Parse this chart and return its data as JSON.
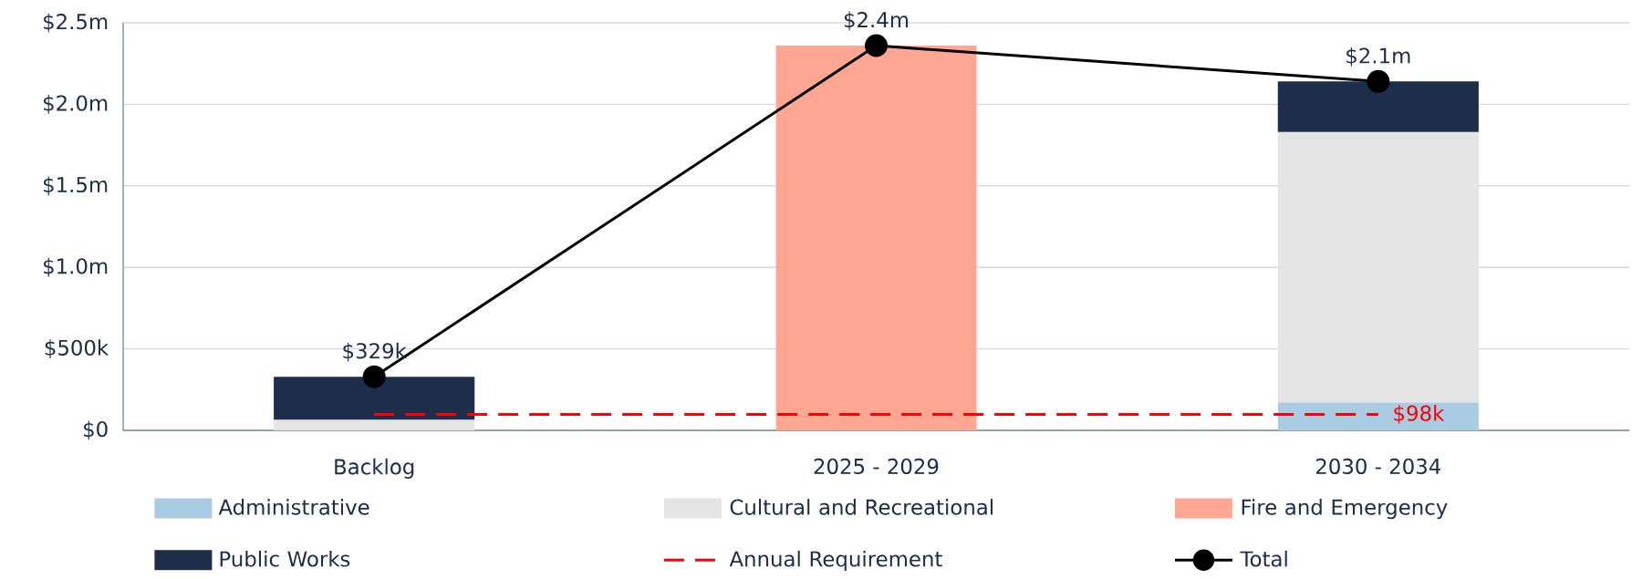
{
  "chart_data": {
    "type": "bar",
    "stacked": true,
    "grid": "y",
    "legend": "bottom",
    "categories": [
      "Backlog",
      "2025 - 2029",
      "2030 - 2034"
    ],
    "ylim": [
      0,
      2500000
    ],
    "yticks": [
      {
        "value": 0,
        "label": "$0"
      },
      {
        "value": 500000,
        "label": "$500k"
      },
      {
        "value": 1000000,
        "label": "$1.0m"
      },
      {
        "value": 1500000,
        "label": "$1.5m"
      },
      {
        "value": 2000000,
        "label": "$2.0m"
      },
      {
        "value": 2500000,
        "label": "$2.5m"
      }
    ],
    "series": [
      {
        "name": "Administrative",
        "type": "bar",
        "color": "#a9cce3",
        "values": [
          0,
          0,
          170000
        ]
      },
      {
        "name": "Cultural and Recreational",
        "type": "bar",
        "color": "#e4e4e4",
        "values": [
          64000,
          0,
          1660000
        ]
      },
      {
        "name": "Fire and Emergency",
        "type": "bar",
        "color": "#ffa792",
        "values": [
          0,
          2360000,
          0
        ]
      },
      {
        "name": "Public Works",
        "type": "bar",
        "color": "#1c2e4a",
        "values": [
          265000,
          0,
          310000
        ]
      },
      {
        "name": "Annual Requirement",
        "type": "line",
        "color": "#ff0000",
        "marker": "none",
        "line_style": "dashed",
        "values": [
          98000,
          98000,
          98000
        ],
        "value_labels": [
          null,
          null,
          "$98k"
        ]
      },
      {
        "name": "Total",
        "type": "line",
        "color": "#000000",
        "marker": "circle",
        "line_style": "solid",
        "values": [
          329000,
          2360000,
          2140000
        ],
        "value_labels": [
          "$329k",
          "$2.4m",
          "$2.1m"
        ]
      }
    ]
  }
}
